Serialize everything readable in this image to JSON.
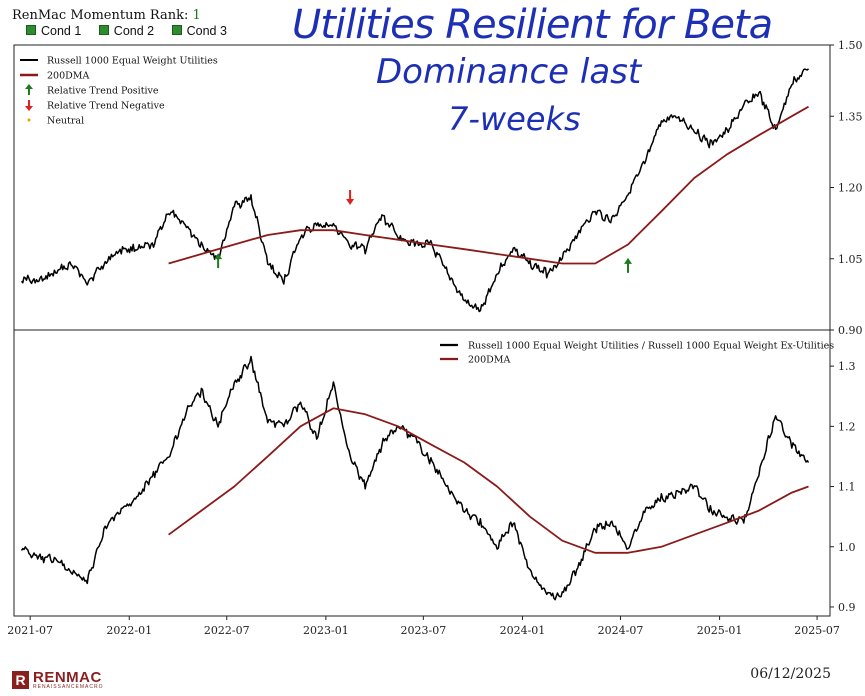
{
  "header": {
    "rank_label": "RenMac Momentum Rank:",
    "rank_value": "1",
    "conditions": [
      "Cond 1",
      "Cond 2",
      "Cond 3"
    ]
  },
  "annotation": {
    "lines": [
      "Utilities Resilient for Beta",
      "Dominance last",
      "7-weeks"
    ],
    "color": "#1d2fb5"
  },
  "footer": {
    "logo_text": "RENMAC",
    "logo_sub": "RENAISSANCEMACRO",
    "date": "06/12/2025"
  },
  "colors": {
    "price": "#000000",
    "dma": "#8b1a1a",
    "positive_arrow": "#1e7b1e",
    "negative_arrow": "#e02020",
    "neutral": "#f0a000"
  },
  "chart_data": [
    {
      "type": "line",
      "series": [
        {
          "name": "Russell 1000 Equal Weight Utilities",
          "x": [
            "2021-06",
            "2021-07",
            "2021-08",
            "2021-09",
            "2021-10",
            "2021-11",
            "2021-12",
            "2022-01",
            "2022-02",
            "2022-03",
            "2022-04",
            "2022-05",
            "2022-06",
            "2022-07",
            "2022-08",
            "2022-09",
            "2022-10",
            "2022-11",
            "2022-12",
            "2023-01",
            "2023-02",
            "2023-03",
            "2023-04",
            "2023-05",
            "2023-06",
            "2023-07",
            "2023-08",
            "2023-09",
            "2023-10",
            "2023-11",
            "2023-12",
            "2024-01",
            "2024-02",
            "2024-03",
            "2024-04",
            "2024-05",
            "2024-06",
            "2024-07",
            "2024-08",
            "2024-09",
            "2024-10",
            "2024-11",
            "2024-12",
            "2025-01",
            "2025-02",
            "2025-03",
            "2025-04",
            "2025-05",
            "2025-06"
          ],
          "values": [
            1.01,
            1.0,
            1.02,
            1.04,
            1.0,
            1.04,
            1.07,
            1.07,
            1.08,
            1.15,
            1.12,
            1.08,
            1.05,
            1.16,
            1.18,
            1.04,
            1.0,
            1.1,
            1.12,
            1.12,
            1.08,
            1.07,
            1.14,
            1.1,
            1.08,
            1.08,
            1.02,
            0.96,
            0.94,
            1.02,
            1.07,
            1.04,
            1.02,
            1.05,
            1.11,
            1.15,
            1.13,
            1.19,
            1.25,
            1.34,
            1.35,
            1.32,
            1.29,
            1.32,
            1.37,
            1.4,
            1.32,
            1.42,
            1.45
          ]
        },
        {
          "name": "200DMA",
          "x": [
            "2022-03",
            "2022-05",
            "2022-07",
            "2022-09",
            "2022-11",
            "2023-01",
            "2023-03",
            "2023-05",
            "2023-07",
            "2023-09",
            "2023-11",
            "2024-01",
            "2024-03",
            "2024-05",
            "2024-07",
            "2024-09",
            "2024-11",
            "2025-01",
            "2025-03",
            "2025-05",
            "2025-06"
          ],
          "values": [
            1.04,
            1.06,
            1.08,
            1.1,
            1.11,
            1.11,
            1.1,
            1.09,
            1.08,
            1.07,
            1.06,
            1.05,
            1.04,
            1.04,
            1.08,
            1.15,
            1.22,
            1.27,
            1.31,
            1.35,
            1.37
          ]
        }
      ],
      "markers": [
        {
          "label": "Relative Trend Positive",
          "x": "2022-06",
          "y": 1.045,
          "kind": "up"
        },
        {
          "label": "Relative Trend Negative",
          "x": "2023-02",
          "y": 1.18,
          "kind": "down"
        },
        {
          "label": "Relative Trend Positive",
          "x": "2024-07",
          "y": 1.035,
          "kind": "up"
        }
      ],
      "legend": [
        "Russell 1000 Equal Weight Utilities",
        "200DMA",
        "Relative Trend Positive",
        "Relative Trend Negative",
        "Neutral"
      ],
      "legend_position": "top-left",
      "ylim": [
        0.9,
        1.5
      ],
      "yticks": [
        "0.90",
        "1.05",
        "1.20",
        "1.35",
        "1.50"
      ],
      "grid": false
    },
    {
      "type": "line",
      "series": [
        {
          "name": "Russell 1000 Equal Weight Utilities / Russell 1000 Equal Weight Ex-Utilities",
          "x": [
            "2021-06",
            "2021-07",
            "2021-08",
            "2021-09",
            "2021-10",
            "2021-11",
            "2021-12",
            "2022-01",
            "2022-02",
            "2022-03",
            "2022-04",
            "2022-05",
            "2022-06",
            "2022-07",
            "2022-08",
            "2022-09",
            "2022-10",
            "2022-11",
            "2022-12",
            "2023-01",
            "2023-02",
            "2023-03",
            "2023-04",
            "2023-05",
            "2023-06",
            "2023-07",
            "2023-08",
            "2023-09",
            "2023-10",
            "2023-11",
            "2023-12",
            "2024-01",
            "2024-02",
            "2024-03",
            "2024-04",
            "2024-05",
            "2024-06",
            "2024-07",
            "2024-08",
            "2024-09",
            "2024-10",
            "2024-11",
            "2024-12",
            "2025-01",
            "2025-02",
            "2025-03",
            "2025-04",
            "2025-05",
            "2025-06"
          ],
          "values": [
            1.0,
            0.98,
            0.98,
            0.96,
            0.94,
            1.03,
            1.06,
            1.08,
            1.12,
            1.15,
            1.22,
            1.26,
            1.2,
            1.27,
            1.31,
            1.21,
            1.2,
            1.24,
            1.18,
            1.27,
            1.15,
            1.1,
            1.17,
            1.2,
            1.18,
            1.14,
            1.1,
            1.06,
            1.04,
            1.0,
            1.04,
            0.96,
            0.92,
            0.92,
            0.97,
            1.03,
            1.04,
            1.0,
            1.06,
            1.08,
            1.09,
            1.1,
            1.06,
            1.05,
            1.04,
            1.12,
            1.22,
            1.17,
            1.14
          ]
        },
        {
          "name": "200DMA",
          "x": [
            "2022-03",
            "2022-05",
            "2022-07",
            "2022-09",
            "2022-11",
            "2023-01",
            "2023-03",
            "2023-05",
            "2023-07",
            "2023-09",
            "2023-11",
            "2024-01",
            "2024-03",
            "2024-05",
            "2024-07",
            "2024-09",
            "2024-11",
            "2025-01",
            "2025-03",
            "2025-05",
            "2025-06"
          ],
          "values": [
            1.02,
            1.06,
            1.1,
            1.15,
            1.2,
            1.23,
            1.22,
            1.2,
            1.17,
            1.14,
            1.1,
            1.05,
            1.01,
            0.99,
            0.99,
            1.0,
            1.02,
            1.04,
            1.06,
            1.09,
            1.1
          ]
        }
      ],
      "legend": [
        "Russell 1000 Equal Weight Utilities / Russell 1000 Equal Weight Ex-Utilities",
        "200DMA"
      ],
      "legend_position": "top-right",
      "ylim": [
        0.885,
        1.36
      ],
      "yticks": [
        "0.9",
        "1.0",
        "1.1",
        "1.2",
        "1.3"
      ],
      "xticks": [
        "2021-07",
        "2022-01",
        "2022-07",
        "2023-01",
        "2023-07",
        "2024-01",
        "2024-07",
        "2025-01",
        "2025-07"
      ],
      "grid": false
    }
  ]
}
